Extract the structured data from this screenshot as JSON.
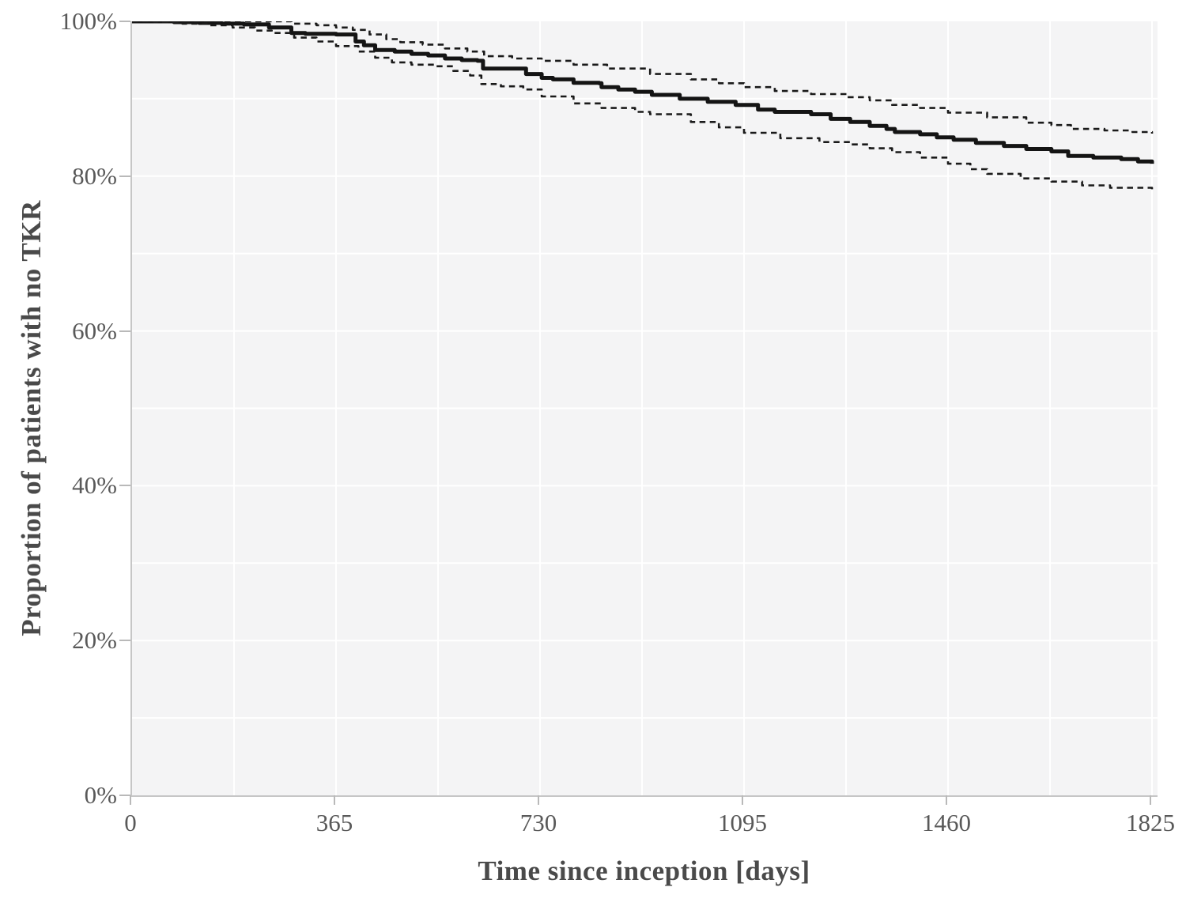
{
  "chart_data": {
    "type": "line",
    "title": "",
    "xlabel": "Time since inception [days]",
    "ylabel": "Proportion of patients with no TKR",
    "xlim": [
      0,
      1825
    ],
    "ylim": [
      0,
      100
    ],
    "x_ticks": [
      0,
      365,
      730,
      1095,
      1460,
      1825
    ],
    "x_tick_labels": [
      "0",
      "365",
      "730",
      "1095",
      "1460",
      "1825"
    ],
    "y_ticks": [
      0,
      20,
      40,
      60,
      80,
      100
    ],
    "y_tick_labels": [
      "0%",
      "20%",
      "40%",
      "60%",
      "80%",
      "100%"
    ],
    "x_minor_grid_step": 182.5,
    "y_minor_grid_step": 10,
    "grid_on": true,
    "legend": "none",
    "colors": {
      "plot_background": "#f4f4f5",
      "gridline": "#ffffff",
      "axis_line": "#c6c6c6",
      "tick_text": "#595959",
      "title_text": "#4a4a4a",
      "survival_line": "#141414",
      "ci_line": "#1a1a1a"
    },
    "series": [
      {
        "name": "Kaplan-Meier estimate (no TKR)",
        "style": "solid",
        "width": 5,
        "points": [
          [
            0,
            100
          ],
          [
            30,
            100
          ],
          [
            75,
            99.9
          ],
          [
            120,
            99.8
          ],
          [
            160,
            99.7
          ],
          [
            200,
            99.6
          ],
          [
            245,
            99.2
          ],
          [
            285,
            98.5
          ],
          [
            310,
            98.4
          ],
          [
            365,
            98.3
          ],
          [
            400,
            97.4
          ],
          [
            415,
            96.9
          ],
          [
            435,
            96.3
          ],
          [
            470,
            96.1
          ],
          [
            500,
            95.8
          ],
          [
            530,
            95.6
          ],
          [
            560,
            95.2
          ],
          [
            590,
            95.0
          ],
          [
            618,
            94.9
          ],
          [
            628,
            93.9
          ],
          [
            698,
            93.9
          ],
          [
            705,
            93.2
          ],
          [
            733,
            92.7
          ],
          [
            753,
            92.5
          ],
          [
            790,
            92.05
          ],
          [
            836,
            92.0
          ],
          [
            840,
            91.5
          ],
          [
            870,
            91.2
          ],
          [
            900,
            90.9
          ],
          [
            930,
            90.5
          ],
          [
            980,
            90.0
          ],
          [
            1030,
            89.6
          ],
          [
            1080,
            89.2
          ],
          [
            1120,
            88.6
          ],
          [
            1150,
            88.3
          ],
          [
            1215,
            88.0
          ],
          [
            1250,
            87.4
          ],
          [
            1285,
            87.0
          ],
          [
            1320,
            86.5
          ],
          [
            1350,
            86.1
          ],
          [
            1365,
            85.7
          ],
          [
            1410,
            85.4
          ],
          [
            1440,
            85.0
          ],
          [
            1470,
            84.7
          ],
          [
            1510,
            84.3
          ],
          [
            1560,
            83.9
          ],
          [
            1600,
            83.5
          ],
          [
            1645,
            83.2
          ],
          [
            1675,
            82.6
          ],
          [
            1720,
            82.4
          ],
          [
            1770,
            82.2
          ],
          [
            1800,
            81.9
          ],
          [
            1825,
            81.6
          ]
        ]
      },
      {
        "name": "Upper 95% confidence limit",
        "style": "dashed",
        "width": 2.6,
        "points": [
          [
            0,
            100
          ],
          [
            250,
            100
          ],
          [
            285,
            99.7
          ],
          [
            330,
            99.5
          ],
          [
            365,
            99.2
          ],
          [
            395,
            98.9
          ],
          [
            425,
            98.3
          ],
          [
            455,
            97.7
          ],
          [
            480,
            97.3
          ],
          [
            520,
            97.0
          ],
          [
            560,
            96.5
          ],
          [
            600,
            96.1
          ],
          [
            630,
            95.5
          ],
          [
            680,
            95.2
          ],
          [
            733,
            94.9
          ],
          [
            790,
            94.4
          ],
          [
            850,
            93.9
          ],
          [
            927,
            93.2
          ],
          [
            1000,
            92.5
          ],
          [
            1050,
            92.0
          ],
          [
            1095,
            91.5
          ],
          [
            1150,
            91.0
          ],
          [
            1215,
            90.6
          ],
          [
            1280,
            90.2
          ],
          [
            1320,
            89.8
          ],
          [
            1360,
            89.2
          ],
          [
            1410,
            88.8
          ],
          [
            1460,
            88.2
          ],
          [
            1530,
            87.6
          ],
          [
            1600,
            86.9
          ],
          [
            1645,
            86.6
          ],
          [
            1680,
            86.1
          ],
          [
            1740,
            85.9
          ],
          [
            1790,
            85.7
          ],
          [
            1825,
            85.5
          ]
        ]
      },
      {
        "name": "Lower 95% confidence limit",
        "style": "dashed",
        "width": 2.6,
        "points": [
          [
            0,
            100
          ],
          [
            40,
            99.9
          ],
          [
            90,
            99.7
          ],
          [
            140,
            99.5
          ],
          [
            180,
            99.2
          ],
          [
            220,
            98.8
          ],
          [
            250,
            98.5
          ],
          [
            290,
            97.9
          ],
          [
            330,
            97.4
          ],
          [
            365,
            96.8
          ],
          [
            405,
            96.1
          ],
          [
            435,
            95.3
          ],
          [
            465,
            94.7
          ],
          [
            500,
            94.4
          ],
          [
            545,
            94.2
          ],
          [
            575,
            93.6
          ],
          [
            605,
            93.0
          ],
          [
            625,
            91.9
          ],
          [
            660,
            91.6
          ],
          [
            700,
            91.2
          ],
          [
            733,
            90.3
          ],
          [
            790,
            89.4
          ],
          [
            840,
            88.8
          ],
          [
            900,
            88.3
          ],
          [
            927,
            88.0
          ],
          [
            1000,
            87.0
          ],
          [
            1050,
            86.3
          ],
          [
            1095,
            85.6
          ],
          [
            1160,
            84.9
          ],
          [
            1230,
            84.4
          ],
          [
            1285,
            84.1
          ],
          [
            1320,
            83.6
          ],
          [
            1360,
            83.1
          ],
          [
            1410,
            82.4
          ],
          [
            1460,
            81.6
          ],
          [
            1500,
            80.9
          ],
          [
            1530,
            80.3
          ],
          [
            1590,
            79.7
          ],
          [
            1645,
            79.3
          ],
          [
            1700,
            78.8
          ],
          [
            1750,
            78.5
          ],
          [
            1825,
            78.3
          ]
        ]
      }
    ]
  }
}
